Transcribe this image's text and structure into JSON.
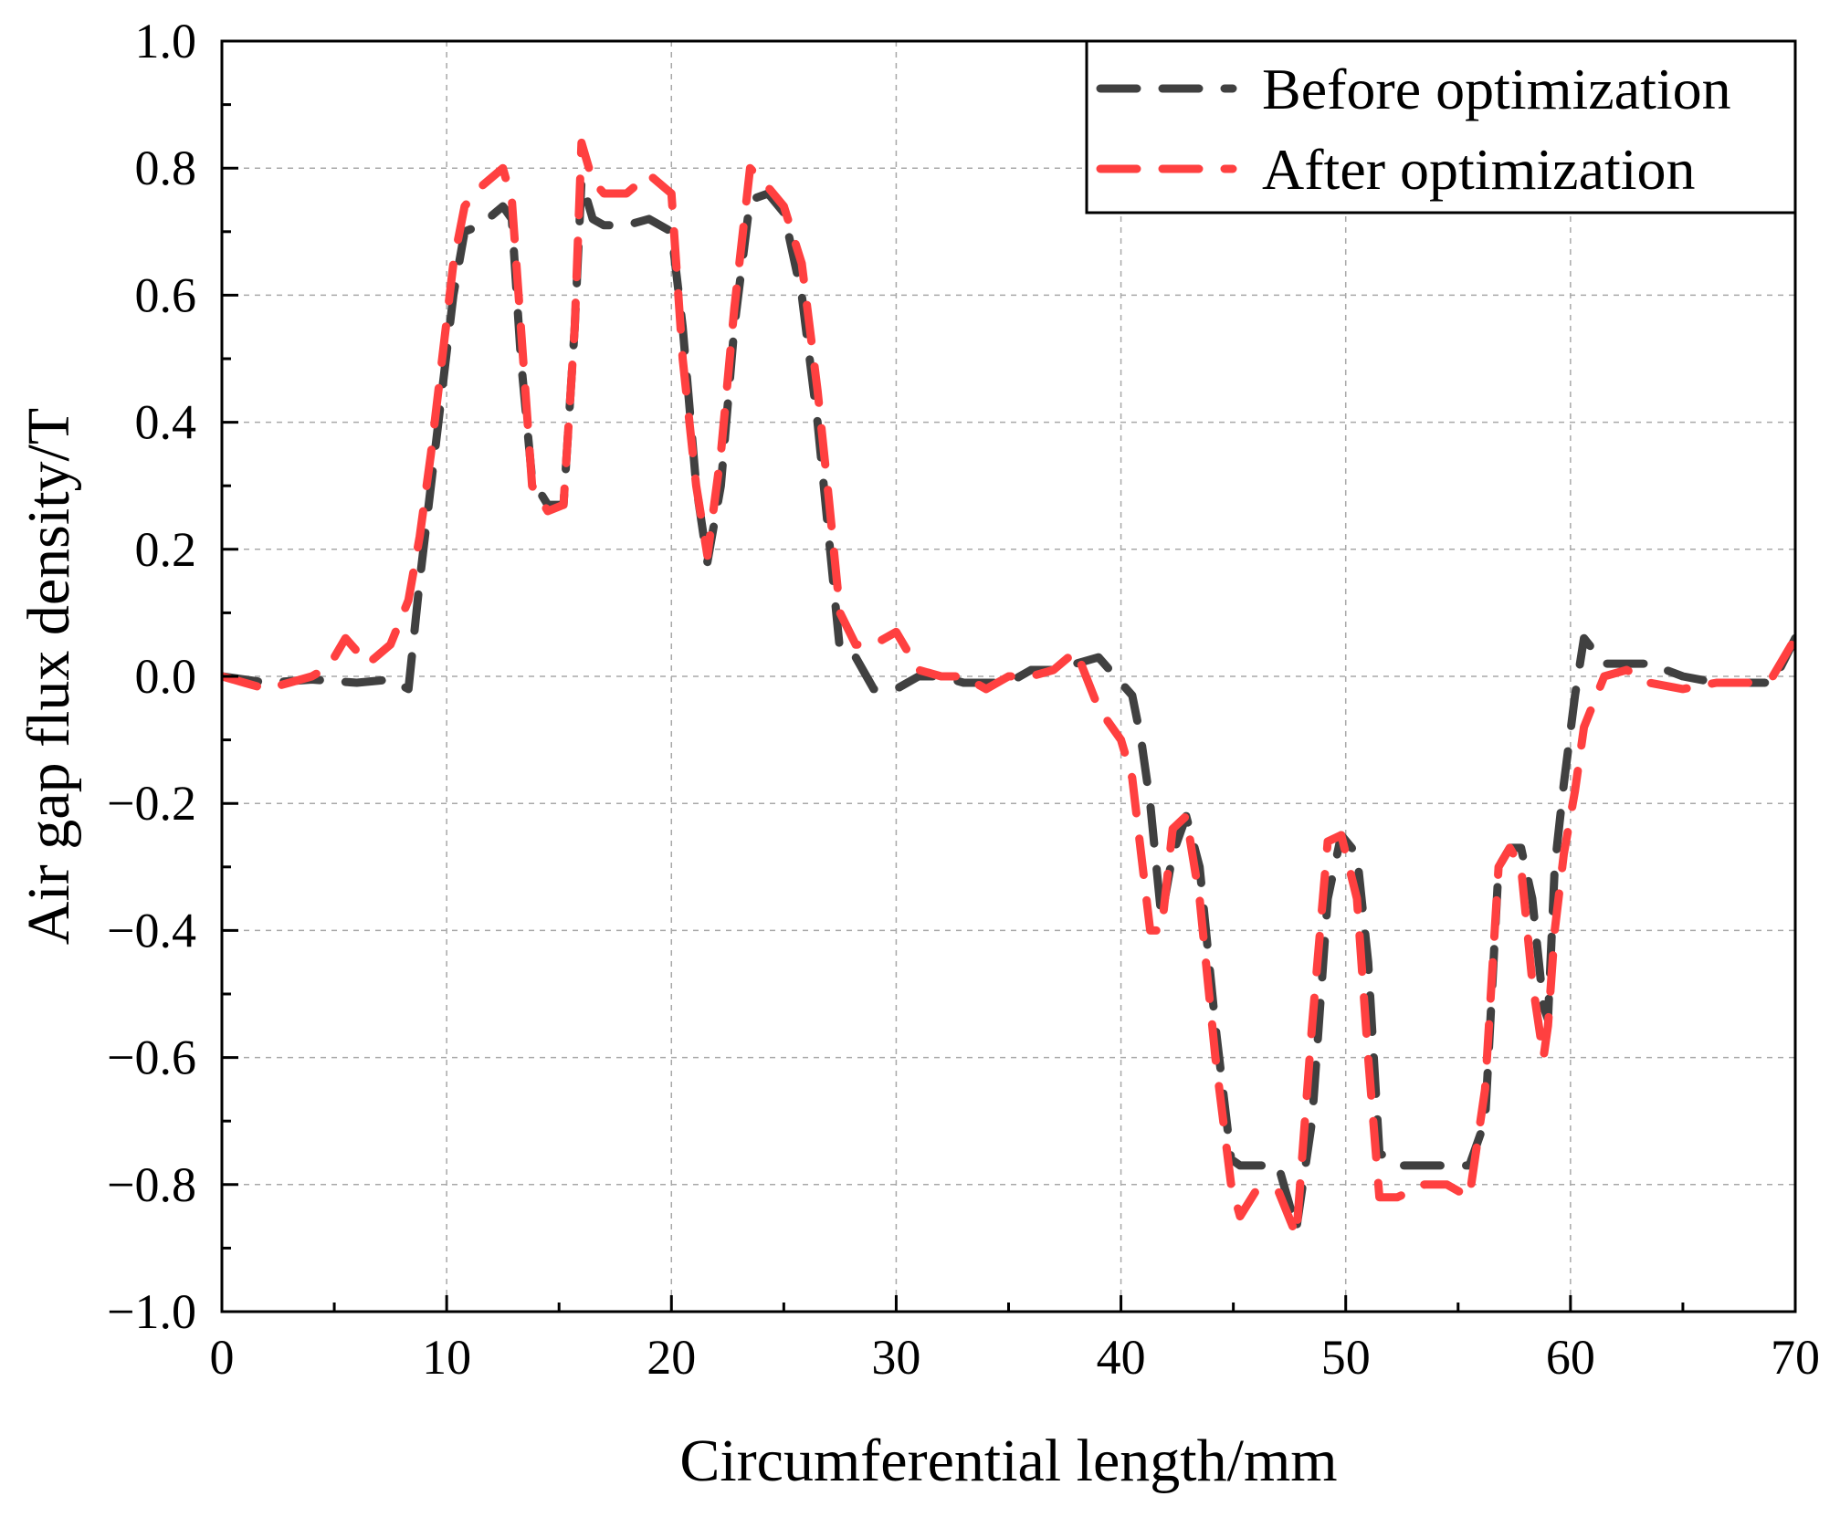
{
  "chart_data": {
    "type": "line",
    "title": "",
    "xlabel": "Circumferential length/mm",
    "ylabel": "Air gap flux density/T",
    "xlim": [
      0,
      70
    ],
    "ylim": [
      -1.0,
      1.0
    ],
    "xticks": [
      0,
      10,
      20,
      30,
      40,
      50,
      60,
      70
    ],
    "xtick_labels": [
      "0",
      "10",
      "20",
      "30",
      "40",
      "50",
      "60",
      "70"
    ],
    "yticks": [
      -1.0,
      -0.8,
      -0.6,
      -0.4,
      -0.2,
      0.0,
      0.2,
      0.4,
      0.6,
      0.8,
      1.0
    ],
    "ytick_labels": [
      "−1.0",
      "−0.8",
      "−0.6",
      "−0.4",
      "−0.2",
      "0.0",
      "0.2",
      "0.4",
      "0.6",
      "0.8",
      "1.0"
    ],
    "grid": true,
    "legend_position": "top-right",
    "series": [
      {
        "name": "Before optimization",
        "color": "#404040",
        "style": "dashed",
        "x": [
          0,
          2,
          4,
          6,
          7.5,
          8.3,
          8.8,
          9.3,
          9.8,
          10.3,
          10.8,
          11.5,
          12.5,
          12.9,
          13.3,
          13.8,
          14.5,
          15.2,
          15.7,
          16.0,
          16.5,
          17,
          18,
          19,
          20,
          20.5,
          21.1,
          21.6,
          22.2,
          22.8,
          23.5,
          24.3,
          25.0,
          25.8,
          26.5,
          27.0,
          27.5,
          28.2,
          29,
          30,
          31,
          32,
          33,
          34,
          35,
          36,
          37,
          38,
          39,
          40,
          40.5,
          40.9,
          41.3,
          41.8,
          42.3,
          42.9,
          43.5,
          44.2,
          44.9,
          45.3,
          46,
          47,
          47.8,
          48.5,
          49.2,
          49.8,
          50.5,
          51.0,
          51.5,
          52.3,
          53.5,
          54.5,
          55.5,
          56.2,
          56.8,
          57.3,
          57.8,
          58.3,
          58.8,
          59.0,
          59.3,
          59.7,
          60.2,
          60.6,
          61.5,
          62.5,
          63.5,
          65,
          66.5,
          68,
          69,
          70
        ],
        "y": [
          0.0,
          -0.01,
          -0.005,
          -0.01,
          -0.005,
          -0.02,
          0.15,
          0.3,
          0.45,
          0.6,
          0.7,
          0.71,
          0.74,
          0.72,
          0.5,
          0.31,
          0.27,
          0.27,
          0.55,
          0.78,
          0.72,
          0.71,
          0.71,
          0.72,
          0.7,
          0.55,
          0.3,
          0.18,
          0.3,
          0.55,
          0.75,
          0.76,
          0.73,
          0.6,
          0.4,
          0.22,
          0.04,
          0.03,
          -0.02,
          -0.02,
          0.0,
          0.0,
          -0.01,
          -0.01,
          -0.01,
          0.01,
          0.01,
          0.02,
          0.03,
          -0.01,
          -0.03,
          -0.1,
          -0.2,
          -0.38,
          -0.28,
          -0.22,
          -0.3,
          -0.55,
          -0.76,
          -0.77,
          -0.77,
          -0.77,
          -0.87,
          -0.7,
          -0.35,
          -0.25,
          -0.28,
          -0.45,
          -0.75,
          -0.77,
          -0.77,
          -0.77,
          -0.77,
          -0.7,
          -0.3,
          -0.27,
          -0.27,
          -0.35,
          -0.52,
          -0.54,
          -0.3,
          -0.17,
          -0.03,
          0.06,
          0.02,
          0.02,
          0.02,
          0.0,
          -0.01,
          -0.01,
          -0.01,
          0.06
        ]
      },
      {
        "name": "After optimization",
        "color": "#ff4040",
        "style": "dashed",
        "x": [
          0,
          1,
          2,
          3,
          4,
          4.5,
          5,
          5.5,
          6.5,
          7.5,
          8.3,
          8.8,
          9.3,
          9.8,
          10.3,
          10.8,
          11.5,
          12.5,
          12.9,
          13.3,
          13.8,
          14.5,
          15.2,
          15.7,
          16.0,
          16.5,
          17,
          18,
          19,
          20,
          20.5,
          21.1,
          21.6,
          22.2,
          22.8,
          23.5,
          24.3,
          25.0,
          25.8,
          26.5,
          27.0,
          27.5,
          28.2,
          29,
          30,
          31,
          32,
          33,
          34,
          35,
          36,
          37,
          38,
          39,
          40,
          40.5,
          40.9,
          41.3,
          41.8,
          42.3,
          42.9,
          43.5,
          44.2,
          44.9,
          45.3,
          46,
          47,
          47.8,
          48.5,
          49.2,
          49.8,
          50.5,
          51.0,
          51.5,
          52.3,
          53.5,
          54.5,
          55.5,
          56.2,
          56.8,
          57.3,
          57.8,
          58.3,
          58.8,
          59.0,
          59.3,
          59.7,
          60.2,
          60.6,
          61.5,
          62.5,
          63.5,
          65,
          66.5,
          68,
          69,
          70
        ],
        "y": [
          0.0,
          -0.01,
          -0.02,
          -0.01,
          0.0,
          0.01,
          0.03,
          0.06,
          0.02,
          0.05,
          0.12,
          0.22,
          0.35,
          0.5,
          0.65,
          0.74,
          0.77,
          0.8,
          0.75,
          0.55,
          0.3,
          0.26,
          0.27,
          0.55,
          0.84,
          0.78,
          0.76,
          0.76,
          0.79,
          0.76,
          0.5,
          0.3,
          0.19,
          0.35,
          0.58,
          0.8,
          0.77,
          0.74,
          0.65,
          0.45,
          0.28,
          0.1,
          0.05,
          0.05,
          0.07,
          0.01,
          0.0,
          0.0,
          -0.02,
          0.0,
          0.0,
          0.01,
          0.04,
          -0.05,
          -0.1,
          -0.16,
          -0.28,
          -0.4,
          -0.4,
          -0.24,
          -0.22,
          -0.35,
          -0.6,
          -0.8,
          -0.85,
          -0.81,
          -0.81,
          -0.88,
          -0.55,
          -0.26,
          -0.25,
          -0.35,
          -0.6,
          -0.82,
          -0.82,
          -0.8,
          -0.8,
          -0.82,
          -0.65,
          -0.3,
          -0.27,
          -0.3,
          -0.48,
          -0.6,
          -0.55,
          -0.4,
          -0.28,
          -0.18,
          -0.08,
          0.0,
          0.01,
          -0.01,
          -0.02,
          -0.01,
          -0.01,
          0.0,
          0.06
        ]
      }
    ]
  }
}
